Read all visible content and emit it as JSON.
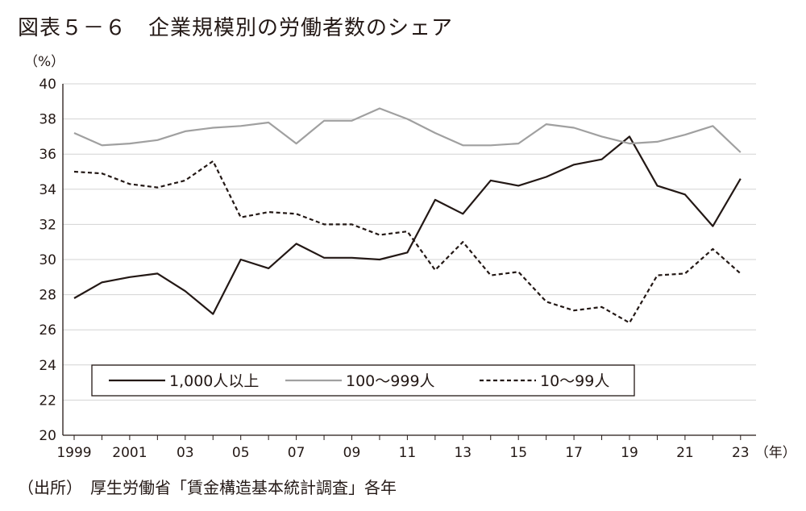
{
  "title": "図表５－６　企業規模別の労働者数のシェア",
  "source": "（出所）　厚生労働省「賃金構造基本統計調査」各年",
  "chart_data": {
    "type": "line",
    "y_unit": "（%）",
    "x_unit": "（年）",
    "ylim": [
      20,
      40
    ],
    "y_ticks": [
      "20",
      "22",
      "24",
      "26",
      "28",
      "30",
      "32",
      "34",
      "36",
      "38",
      "40"
    ],
    "x_ticks": [
      "1999",
      "2001",
      "03",
      "05",
      "07",
      "09",
      "11",
      "13",
      "15",
      "17",
      "19",
      "21",
      "23"
    ],
    "grid": true,
    "legend_position": "bottom-left",
    "x": [
      1999,
      2000,
      2001,
      2002,
      2003,
      2004,
      2005,
      2006,
      2007,
      2008,
      2009,
      2010,
      2011,
      2012,
      2013,
      2014,
      2015,
      2016,
      2017,
      2018,
      2019,
      2020,
      2021,
      2022,
      2023
    ],
    "series": [
      {
        "name": "1,000人以上",
        "color": "#231815",
        "dash": "solid",
        "values": [
          27.8,
          28.7,
          29.0,
          29.2,
          28.2,
          26.9,
          30.0,
          29.5,
          30.9,
          30.1,
          30.1,
          30.0,
          30.4,
          33.4,
          32.6,
          34.5,
          34.2,
          34.7,
          35.4,
          35.7,
          37.0,
          34.2,
          33.7,
          31.9,
          34.6
        ]
      },
      {
        "name": "100～999人",
        "color": "#a0a0a0",
        "dash": "solid",
        "values": [
          37.2,
          36.5,
          36.6,
          36.8,
          37.3,
          37.5,
          37.6,
          37.8,
          36.6,
          37.9,
          37.9,
          38.6,
          38.0,
          37.2,
          36.5,
          36.5,
          36.6,
          37.7,
          37.5,
          37.0,
          36.6,
          36.7,
          37.1,
          37.6,
          36.1
        ]
      },
      {
        "name": "10～99人",
        "color": "#231815",
        "dash": "dashed",
        "values": [
          35.0,
          34.9,
          34.3,
          34.1,
          34.5,
          35.6,
          32.4,
          32.7,
          32.6,
          32.0,
          32.0,
          31.4,
          31.6,
          29.4,
          31.0,
          29.1,
          29.3,
          27.6,
          27.1,
          27.3,
          26.4,
          29.1,
          29.2,
          30.6,
          29.2
        ]
      }
    ]
  }
}
